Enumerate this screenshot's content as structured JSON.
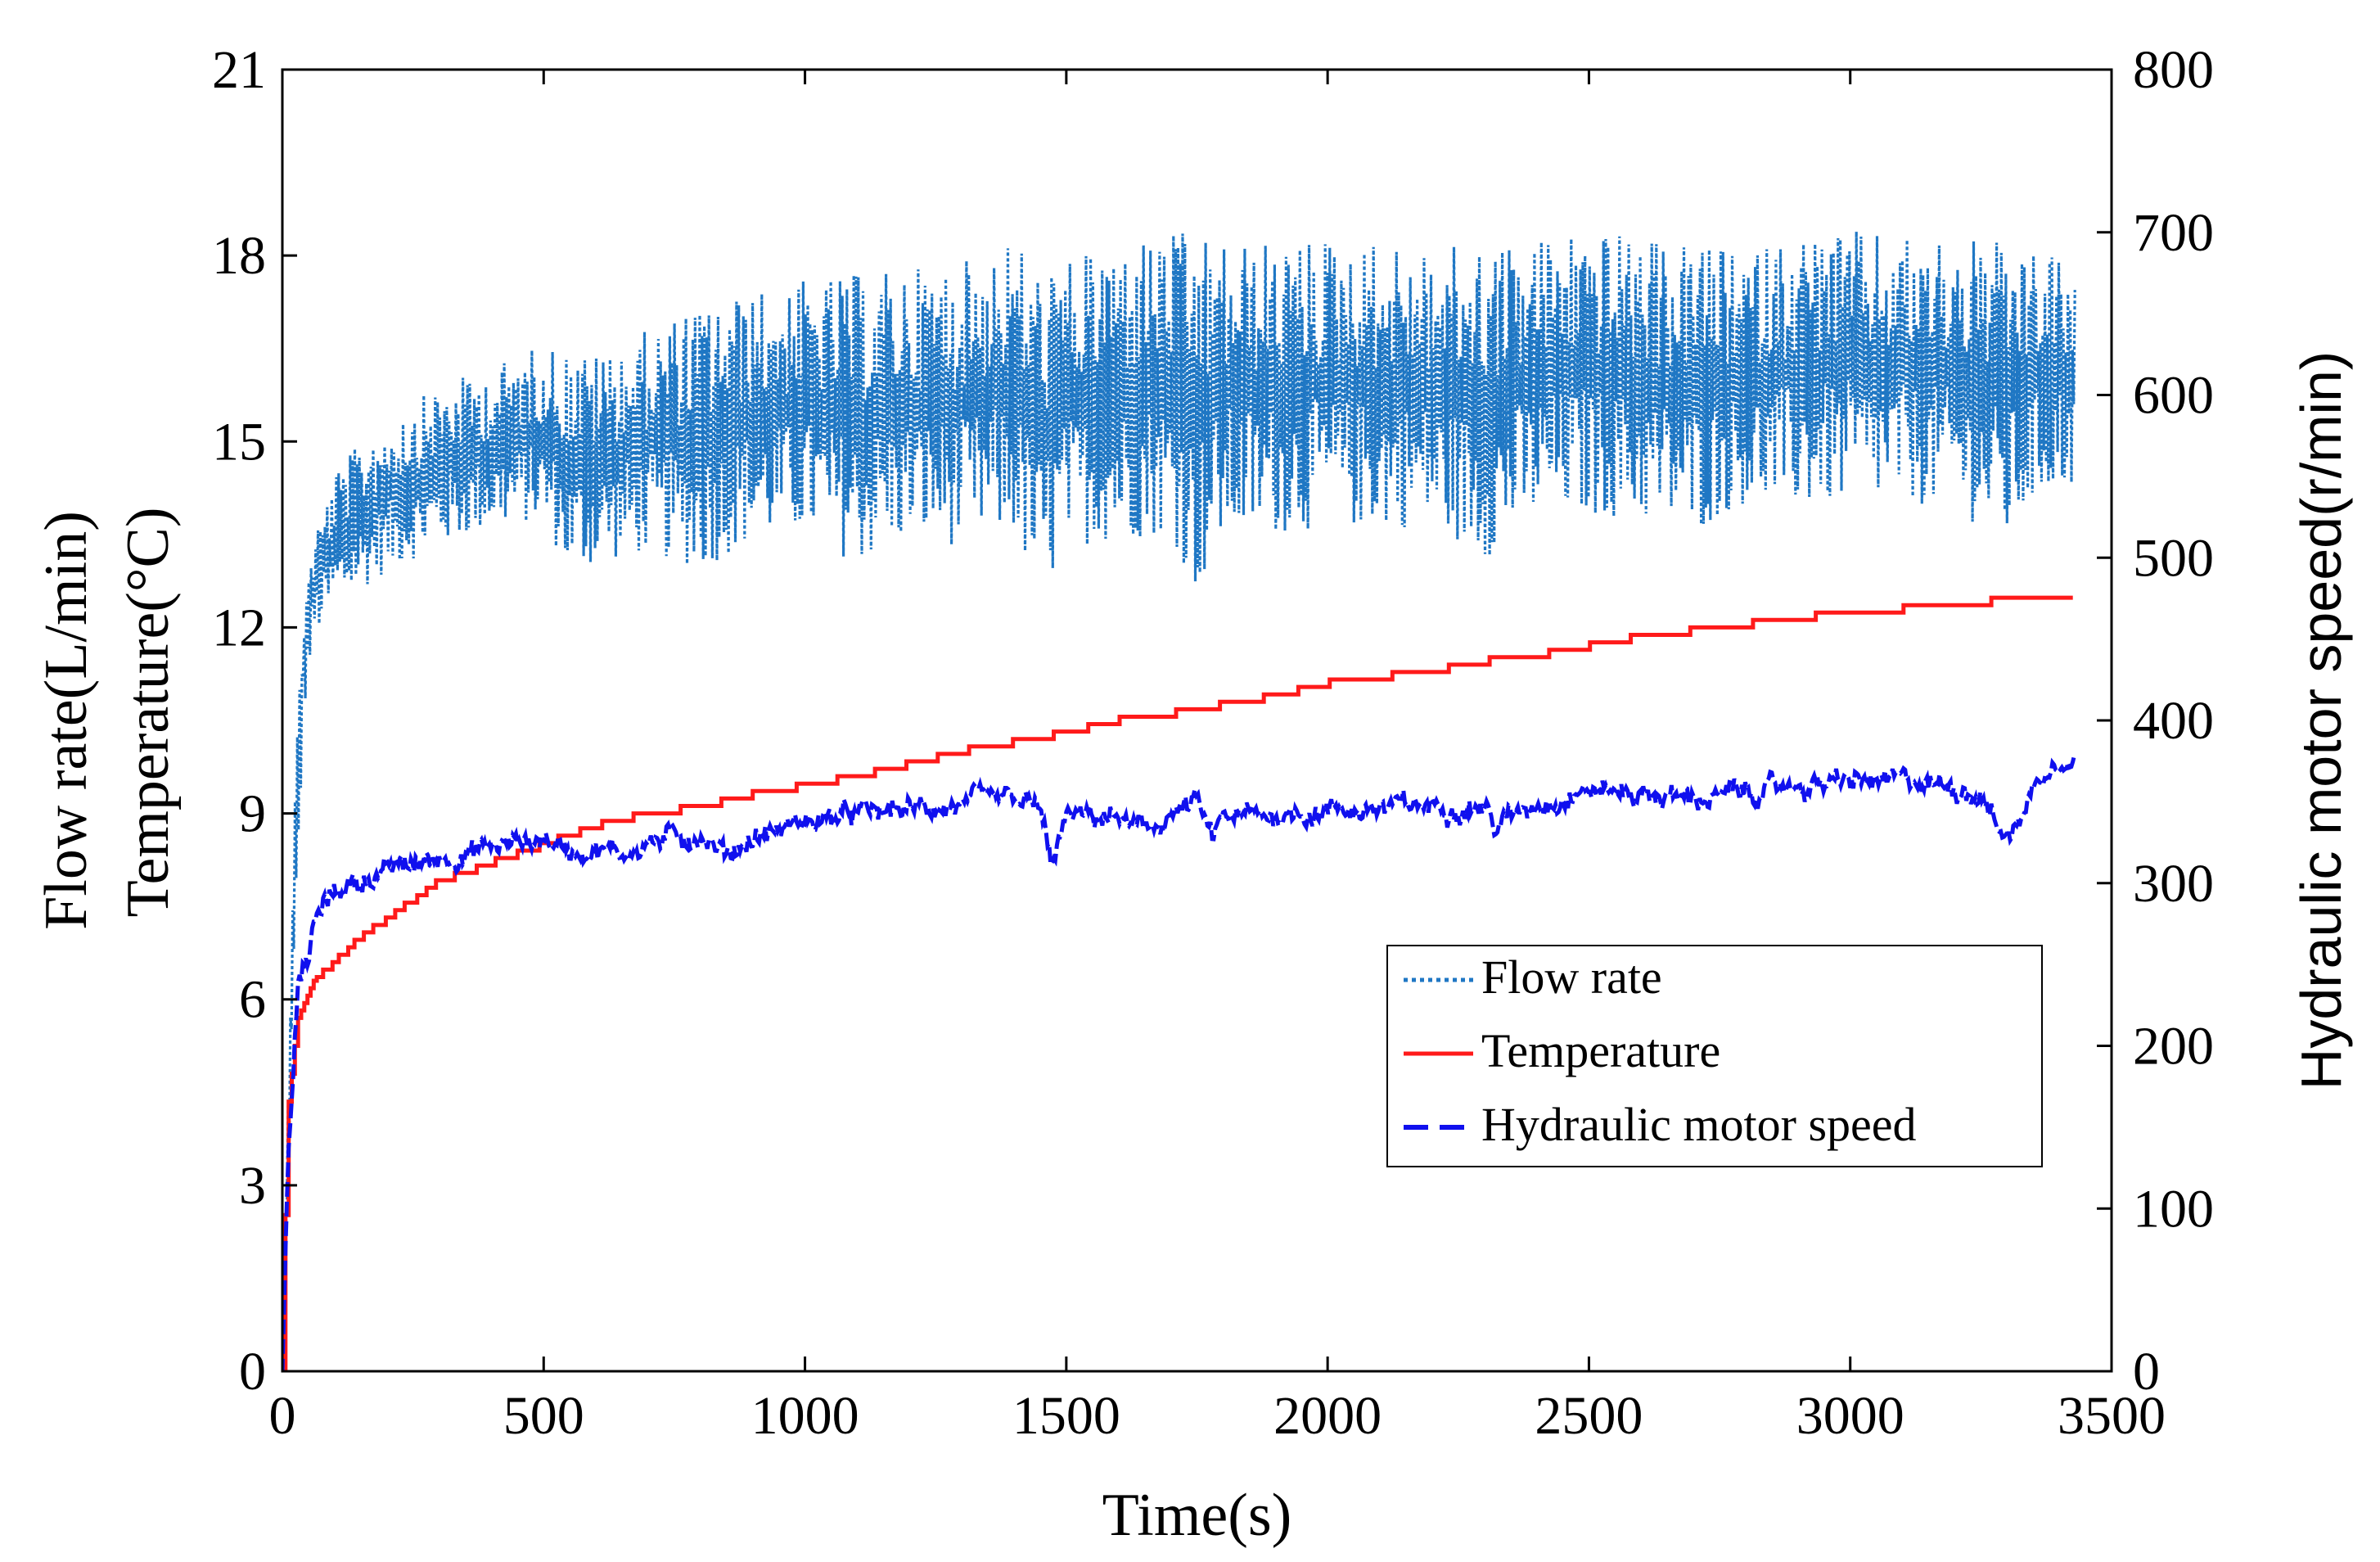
{
  "chart_data": {
    "type": "line",
    "title": "",
    "xlabel": "Time(s)",
    "ylabel_left_line1": "Flow rate(L/min)",
    "ylabel_left_line2": "Temperature(°C)",
    "ylabel_right": "Hydraulic motor speed(r/min)",
    "xlim": [
      0,
      3500
    ],
    "ylim_left": [
      0,
      21
    ],
    "ylim_right": [
      0,
      800
    ],
    "xticks": [
      "0",
      "500",
      "1000",
      "1500",
      "2000",
      "2500",
      "3000",
      "3500"
    ],
    "yticks_left": [
      "0",
      "3",
      "6",
      "9",
      "12",
      "15",
      "18",
      "21"
    ],
    "yticks_right": [
      "0",
      "100",
      "200",
      "300",
      "400",
      "500",
      "600",
      "700",
      "800"
    ],
    "grid": false,
    "legend_position": "lower-right",
    "colors": {
      "flow": "#1f77c4",
      "temperature": "#ff1a1a",
      "speed": "#1010ee"
    },
    "series": [
      {
        "name": "Flow rate",
        "axis": "left",
        "style": "dotted",
        "x": [
          0,
          20,
          40,
          60,
          100,
          150,
          200,
          300,
          400,
          500,
          550,
          600,
          700,
          800,
          900,
          1000,
          1100,
          1200,
          1300,
          1400,
          1450,
          1500,
          1600,
          1700,
          1750,
          1800,
          1900,
          2000,
          2100,
          2200,
          2300,
          2400,
          2500,
          2600,
          2700,
          2800,
          2900,
          3000,
          3100,
          3200,
          3300,
          3350,
          3400,
          3430
        ],
        "upper": [
          0,
          9,
          12.5,
          13.5,
          14.5,
          15,
          15.4,
          15.9,
          16.2,
          16.6,
          16.5,
          16.4,
          16.8,
          17.2,
          17.4,
          17.6,
          17.7,
          17.8,
          17.9,
          18.3,
          17.8,
          17.9,
          18.2,
          18.4,
          18.3,
          18.2,
          18.2,
          18.3,
          18.2,
          18.1,
          18.2,
          18.3,
          18.5,
          18.2,
          18.2,
          18.0,
          18.4,
          18.4,
          18.3,
          18.3,
          18.2,
          18.0,
          18.1,
          17.5
        ],
        "lower": [
          0,
          5,
          10.5,
          11.8,
          12.3,
          12.6,
          12.9,
          13.3,
          13.6,
          13.7,
          12.8,
          13.0,
          13.2,
          12.9,
          13.4,
          13.5,
          13.0,
          13.4,
          13.3,
          13.5,
          12.3,
          13.3,
          13.4,
          13.5,
          12.5,
          13.4,
          13.5,
          13.6,
          13.6,
          13.6,
          13.1,
          13.7,
          13.8,
          13.7,
          13.5,
          14.0,
          13.9,
          14.0,
          14.0,
          13.9,
          13.3,
          14.0,
          14.2,
          14.3
        ]
      },
      {
        "name": "Temperature",
        "axis": "left",
        "style": "solid",
        "x": [
          0,
          10,
          30,
          60,
          100,
          150,
          200,
          250,
          300,
          400,
          500,
          600,
          700,
          800,
          900,
          1000,
          1100,
          1200,
          1300,
          1400,
          1500,
          1600,
          1700,
          1750,
          1800,
          1900,
          2000,
          2100,
          2200,
          2300,
          2400,
          2500,
          2600,
          2700,
          2800,
          2900,
          3000,
          3100,
          3200,
          3300,
          3400,
          3430
        ],
        "values": [
          0,
          4.2,
          5.7,
          6.3,
          6.6,
          7.0,
          7.3,
          7.6,
          7.9,
          8.2,
          8.5,
          8.8,
          9.0,
          9.1,
          9.3,
          9.45,
          9.6,
          9.8,
          10.0,
          10.15,
          10.3,
          10.5,
          10.6,
          10.7,
          10.75,
          10.9,
          11.1,
          11.2,
          11.3,
          11.45,
          11.55,
          11.7,
          11.85,
          11.95,
          12.05,
          12.15,
          12.25,
          12.3,
          12.35,
          12.45,
          12.48,
          12.48
        ]
      },
      {
        "name": "Hydraulic motor speed",
        "axis": "right",
        "style": "dashed",
        "x": [
          0,
          10,
          30,
          50,
          60,
          100,
          150,
          200,
          300,
          400,
          500,
          550,
          600,
          650,
          700,
          800,
          850,
          900,
          1000,
          1050,
          1100,
          1200,
          1300,
          1400,
          1450,
          1470,
          1500,
          1600,
          1650,
          1700,
          1750,
          1780,
          1800,
          1900,
          2000,
          2100,
          2200,
          2300,
          2320,
          2400,
          2500,
          2600,
          2700,
          2800,
          2900,
          3000,
          3100,
          3200,
          3250,
          3300,
          3350,
          3400,
          3430
        ],
        "values": [
          0,
          120,
          240,
          250,
          275,
          295,
          302,
          308,
          315,
          322,
          328,
          320,
          322,
          318,
          325,
          330,
          318,
          328,
          338,
          340,
          342,
          345,
          348,
          350,
          346,
          310,
          340,
          340,
          330,
          342,
          350,
          325,
          340,
          342,
          345,
          346,
          348,
          348,
          335,
          350,
          358,
          355,
          352,
          355,
          360,
          362,
          362,
          360,
          355,
          325,
          358,
          380,
          377
        ]
      }
    ]
  }
}
